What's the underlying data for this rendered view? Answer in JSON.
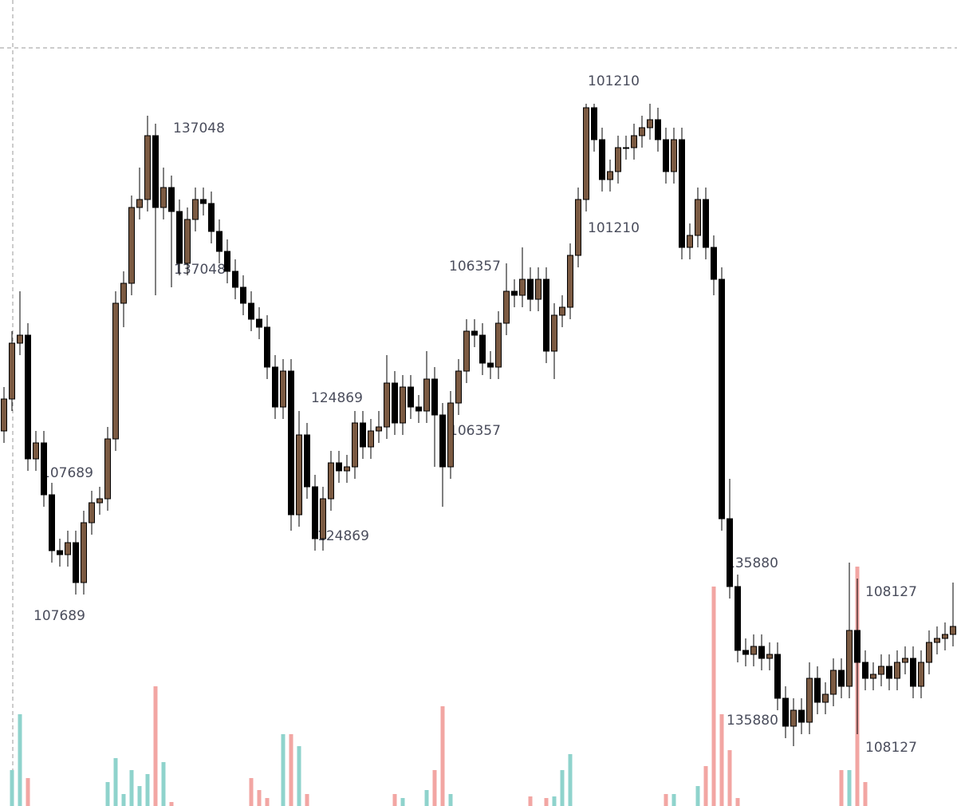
{
  "chart_data": {
    "type": "candlestick",
    "open": [
      470,
      510,
      580,
      590,
      435,
      455,
      390,
      320,
      315,
      330,
      280,
      355,
      380,
      385,
      460,
      630,
      655,
      750,
      760,
      840,
      750,
      775,
      745,
      680,
      735,
      760,
      755,
      720,
      695,
      670,
      650,
      630,
      610,
      600,
      550,
      500,
      545,
      365,
      465,
      400,
      335,
      385,
      430,
      420,
      425,
      480,
      450,
      470,
      475,
      530,
      480,
      525,
      500,
      495,
      535,
      490,
      425,
      505,
      545,
      595,
      590,
      555,
      550,
      605,
      645,
      640,
      660,
      635,
      660,
      570,
      615,
      625,
      690,
      760,
      875,
      835,
      785,
      795,
      825,
      825,
      840,
      850,
      860,
      835,
      795,
      835,
      700,
      715,
      760,
      700,
      660,
      360,
      275,
      195,
      190,
      200,
      185,
      190,
      135,
      100,
      120,
      105,
      160,
      130,
      140,
      170,
      150,
      220,
      180,
      160,
      165,
      175,
      160,
      180,
      185,
      150,
      180,
      205,
      210,
      215
    ],
    "high": [
      525,
      595,
      645,
      605,
      470,
      470,
      405,
      335,
      345,
      345,
      370,
      395,
      400,
      475,
      645,
      670,
      765,
      800,
      865,
      855,
      800,
      790,
      760,
      750,
      775,
      775,
      770,
      735,
      710,
      685,
      665,
      645,
      625,
      615,
      565,
      560,
      560,
      495,
      480,
      415,
      400,
      445,
      445,
      440,
      495,
      495,
      485,
      495,
      565,
      545,
      540,
      540,
      515,
      570,
      550,
      505,
      520,
      560,
      610,
      610,
      605,
      570,
      620,
      680,
      660,
      700,
      675,
      675,
      675,
      630,
      640,
      705,
      775,
      880,
      880,
      850,
      810,
      840,
      840,
      855,
      865,
      880,
      875,
      850,
      850,
      850,
      730,
      775,
      775,
      715,
      675,
      410,
      290,
      210,
      215,
      215,
      205,
      205,
      150,
      135,
      135,
      180,
      175,
      155,
      185,
      185,
      305,
      285,
      195,
      180,
      190,
      190,
      195,
      200,
      200,
      195,
      220,
      225,
      230,
      280
    ],
    "low": [
      455,
      495,
      565,
      420,
      420,
      375,
      305,
      300,
      300,
      265,
      265,
      340,
      365,
      370,
      445,
      600,
      640,
      735,
      745,
      640,
      735,
      650,
      665,
      665,
      720,
      740,
      705,
      680,
      655,
      635,
      615,
      595,
      585,
      535,
      485,
      485,
      345,
      350,
      385,
      320,
      320,
      370,
      405,
      405,
      410,
      435,
      435,
      455,
      460,
      465,
      465,
      485,
      480,
      480,
      425,
      375,
      410,
      490,
      530,
      575,
      540,
      535,
      535,
      590,
      625,
      625,
      620,
      620,
      555,
      535,
      600,
      610,
      675,
      745,
      820,
      770,
      770,
      780,
      810,
      810,
      825,
      835,
      820,
      780,
      780,
      685,
      685,
      700,
      685,
      640,
      345,
      260,
      180,
      175,
      175,
      170,
      170,
      120,
      85,
      75,
      90,
      90,
      115,
      115,
      125,
      135,
      135,
      90,
      145,
      145,
      150,
      145,
      145,
      165,
      135,
      135,
      165,
      190,
      195,
      200
    ],
    "close": [
      510,
      580,
      590,
      435,
      455,
      390,
      320,
      315,
      330,
      280,
      355,
      380,
      385,
      460,
      630,
      655,
      750,
      760,
      840,
      750,
      775,
      745,
      680,
      735,
      760,
      755,
      720,
      695,
      670,
      650,
      630,
      610,
      600,
      550,
      500,
      545,
      365,
      465,
      400,
      335,
      385,
      430,
      420,
      425,
      480,
      450,
      470,
      475,
      530,
      480,
      525,
      500,
      495,
      535,
      490,
      425,
      505,
      545,
      595,
      590,
      555,
      550,
      605,
      645,
      640,
      660,
      635,
      660,
      570,
      615,
      625,
      690,
      760,
      875,
      835,
      785,
      795,
      825,
      825,
      840,
      850,
      860,
      835,
      795,
      835,
      700,
      715,
      760,
      700,
      660,
      360,
      275,
      195,
      190,
      200,
      185,
      190,
      135,
      100,
      120,
      105,
      160,
      130,
      140,
      170,
      150,
      220,
      180,
      160,
      165,
      175,
      160,
      180,
      185,
      150,
      180,
      205,
      210,
      215,
      225
    ],
    "volume": [
      0,
      45,
      115,
      35,
      0,
      0,
      0,
      0,
      0,
      0,
      0,
      0,
      0,
      30,
      60,
      15,
      45,
      25,
      40,
      150,
      55,
      5,
      0,
      0,
      0,
      0,
      0,
      0,
      0,
      0,
      0,
      35,
      20,
      10,
      0,
      90,
      90,
      75,
      15,
      0,
      0,
      0,
      0,
      0,
      0,
      0,
      0,
      0,
      0,
      15,
      10,
      0,
      0,
      20,
      45,
      125,
      15,
      0,
      0,
      0,
      0,
      0,
      0,
      0,
      0,
      0,
      12,
      0,
      10,
      12,
      45,
      65,
      0,
      0,
      0,
      0,
      0,
      0,
      0,
      0,
      0,
      0,
      0,
      15,
      15,
      0,
      0,
      25,
      50,
      275,
      115,
      70,
      10,
      0,
      0,
      0,
      0,
      0,
      0,
      0,
      0,
      0,
      0,
      0,
      0,
      45,
      45,
      300,
      30,
      0,
      0,
      0,
      0,
      0,
      0,
      0,
      0,
      0,
      0,
      0
    ],
    "ylim": [
      0,
      1010
    ],
    "up_color": "#7b5a42",
    "down_color": "#000000",
    "volume_up_color": "#8fd3cc",
    "volume_down_color": "#f2a6a3",
    "annotations": [
      "137048",
      "137048",
      "107689",
      "107689",
      "124869",
      "124869",
      "106357",
      "106357",
      "101210",
      "101210",
      "135880",
      "135880",
      "108127",
      "108127"
    ]
  }
}
